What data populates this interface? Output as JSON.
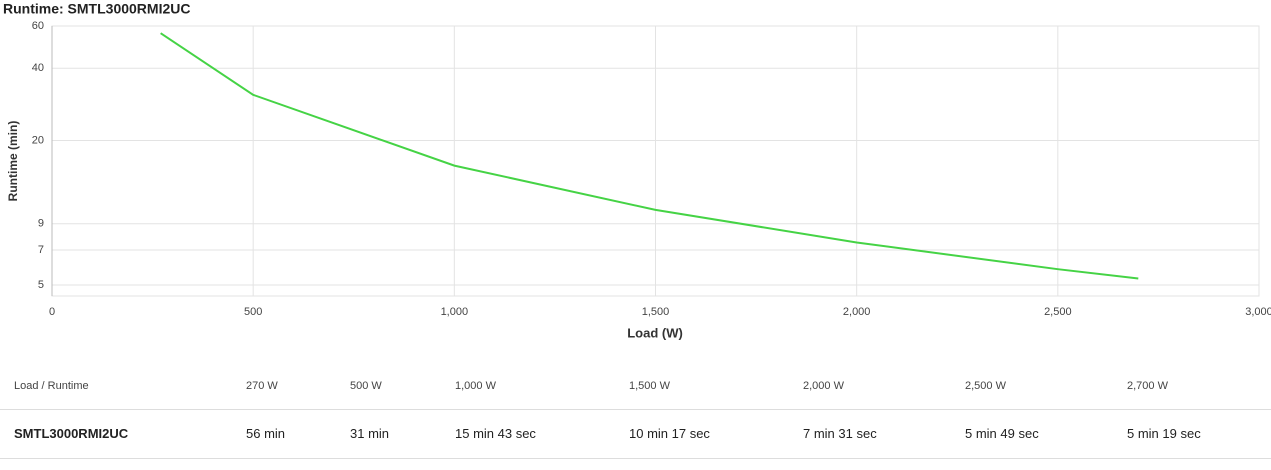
{
  "chart_data": {
    "type": "line",
    "title": "Runtime: SMTL3000RMI2UC",
    "x_label": "Load (W)",
    "y_label": "Runtime (min)",
    "x": [
      270,
      500,
      1000,
      1500,
      2000,
      2500,
      2700
    ],
    "series": [
      {
        "name": "SMTL3000RMI2UC",
        "color": "#45d345",
        "values": [
          56,
          31,
          15.72,
          10.28,
          7.52,
          5.82,
          5.32
        ]
      }
    ],
    "xlim": [
      0,
      3000
    ],
    "xticks": [
      0,
      500,
      {
        "value": 1000,
        "label": "1,000"
      },
      {
        "value": 1500,
        "label": "1,500"
      },
      {
        "value": 2000,
        "label": "2,000"
      },
      {
        "value": 2500,
        "label": "2,500"
      },
      {
        "value": 3000,
        "label": "3,000"
      }
    ],
    "ylim": [
      4.5,
      60
    ],
    "yticks": [
      5,
      7,
      9,
      20,
      40,
      60
    ],
    "yscale": "log",
    "grid": true,
    "table": {
      "header": [
        "Load / Runtime",
        "270 W",
        "500 W",
        "1,000 W",
        "1,500 W",
        "2,000 W",
        "2,500 W",
        "2,700 W"
      ],
      "rows": [
        [
          "SMTL3000RMI2UC",
          "56 min",
          "31 min",
          "15 min 43 sec",
          "10 min 17 sec",
          "7 min 31 sec",
          "5 min 49 sec",
          "5 min 19 sec"
        ]
      ]
    }
  }
}
